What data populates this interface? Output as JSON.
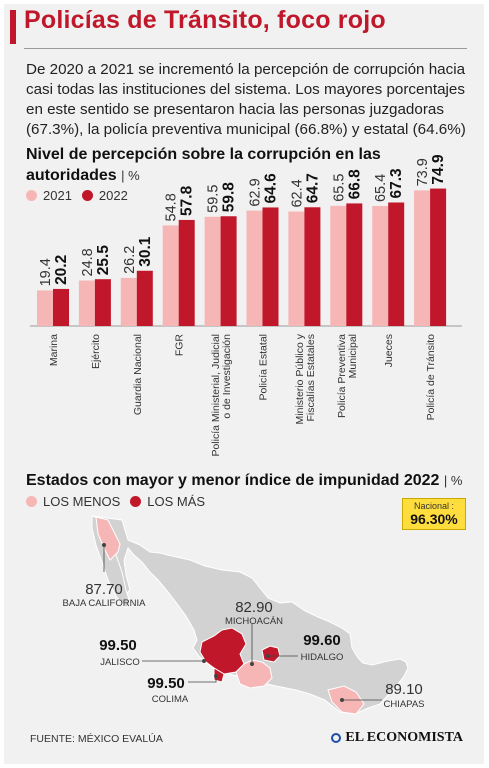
{
  "header": {
    "title": "Policías de Tránsito, foco rojo",
    "intro": "De 2020 a 2021 se incrementó la percepción de corrupción hacia casi todas las instituciones del sistema. Los mayores porcentajes en este sentido se presentaron hacia las personas juzgadoras (67.3%), la policía preventiva municipal (66.8%) y estatal (64.6%)"
  },
  "colors": {
    "accent": "#c0172a",
    "light": "#f7b6b6",
    "dark": "#c0172a"
  },
  "chart_data": [
    {
      "type": "bar",
      "title": "Nivel de percepción sobre la corrupción en las autoridades",
      "unit": "%",
      "categories": [
        "Marina",
        "Ejército",
        "Guardia Nacional",
        "FGR",
        "Policía Ministerial, Judicial o de Investigación",
        "Policía Estatal",
        "Ministerio Público y Fiscalías Estatales",
        "Policía Preventiva Municipal",
        "Jueces",
        "Policía de Tránsito"
      ],
      "category_lines": [
        [
          "Marina"
        ],
        [
          "Ejército"
        ],
        [
          "Guardia Nacional"
        ],
        [
          "FGR"
        ],
        [
          "Policía Ministerial, Judicial",
          "o de Investigación"
        ],
        [
          "Policía Estatal"
        ],
        [
          "Ministerio Público y",
          "Fiscalías Estatales"
        ],
        [
          "Policía Preventiva",
          "Municipal"
        ],
        [
          "Jueces"
        ],
        [
          "Policía de Tránsito"
        ]
      ],
      "series": [
        {
          "name": "2021",
          "color": "#f7b6b6",
          "values": [
            19.4,
            24.8,
            26.2,
            54.8,
            59.5,
            62.9,
            62.4,
            65.5,
            65.4,
            73.9
          ]
        },
        {
          "name": "2022",
          "color": "#c0172a",
          "values": [
            20.2,
            25.5,
            30.1,
            57.8,
            59.8,
            64.6,
            64.7,
            66.8,
            67.3,
            74.9
          ]
        }
      ]
    },
    {
      "type": "map",
      "title": "Estados con mayor y menor índice de impunidad 2022",
      "unit": "%",
      "legend": [
        {
          "label": "LOS MENOS",
          "color": "#f7b6b6"
        },
        {
          "label": "LOS MÁS",
          "color": "#c0172a"
        }
      ],
      "national_label": "Nacional :",
      "national_value": "96.30%",
      "states": [
        {
          "name": "BAJA CALIFORNIA",
          "value": "87.70",
          "group": "LOS MENOS"
        },
        {
          "name": "MICHOACÁN",
          "value": "82.90",
          "group": "LOS MENOS"
        },
        {
          "name": "JALISCO",
          "value": "99.50",
          "group": "LOS MÁS"
        },
        {
          "name": "HIDALGO",
          "value": "99.60",
          "group": "LOS MÁS"
        },
        {
          "name": "COLIMA",
          "value": "99.50",
          "group": "LOS MÁS"
        },
        {
          "name": "CHIAPAS",
          "value": "89.10",
          "group": "LOS MENOS"
        }
      ]
    }
  ],
  "footer": {
    "source": "FUENTE: MÉXICO EVALÚA",
    "brand": "EL ECONOMISTA"
  }
}
